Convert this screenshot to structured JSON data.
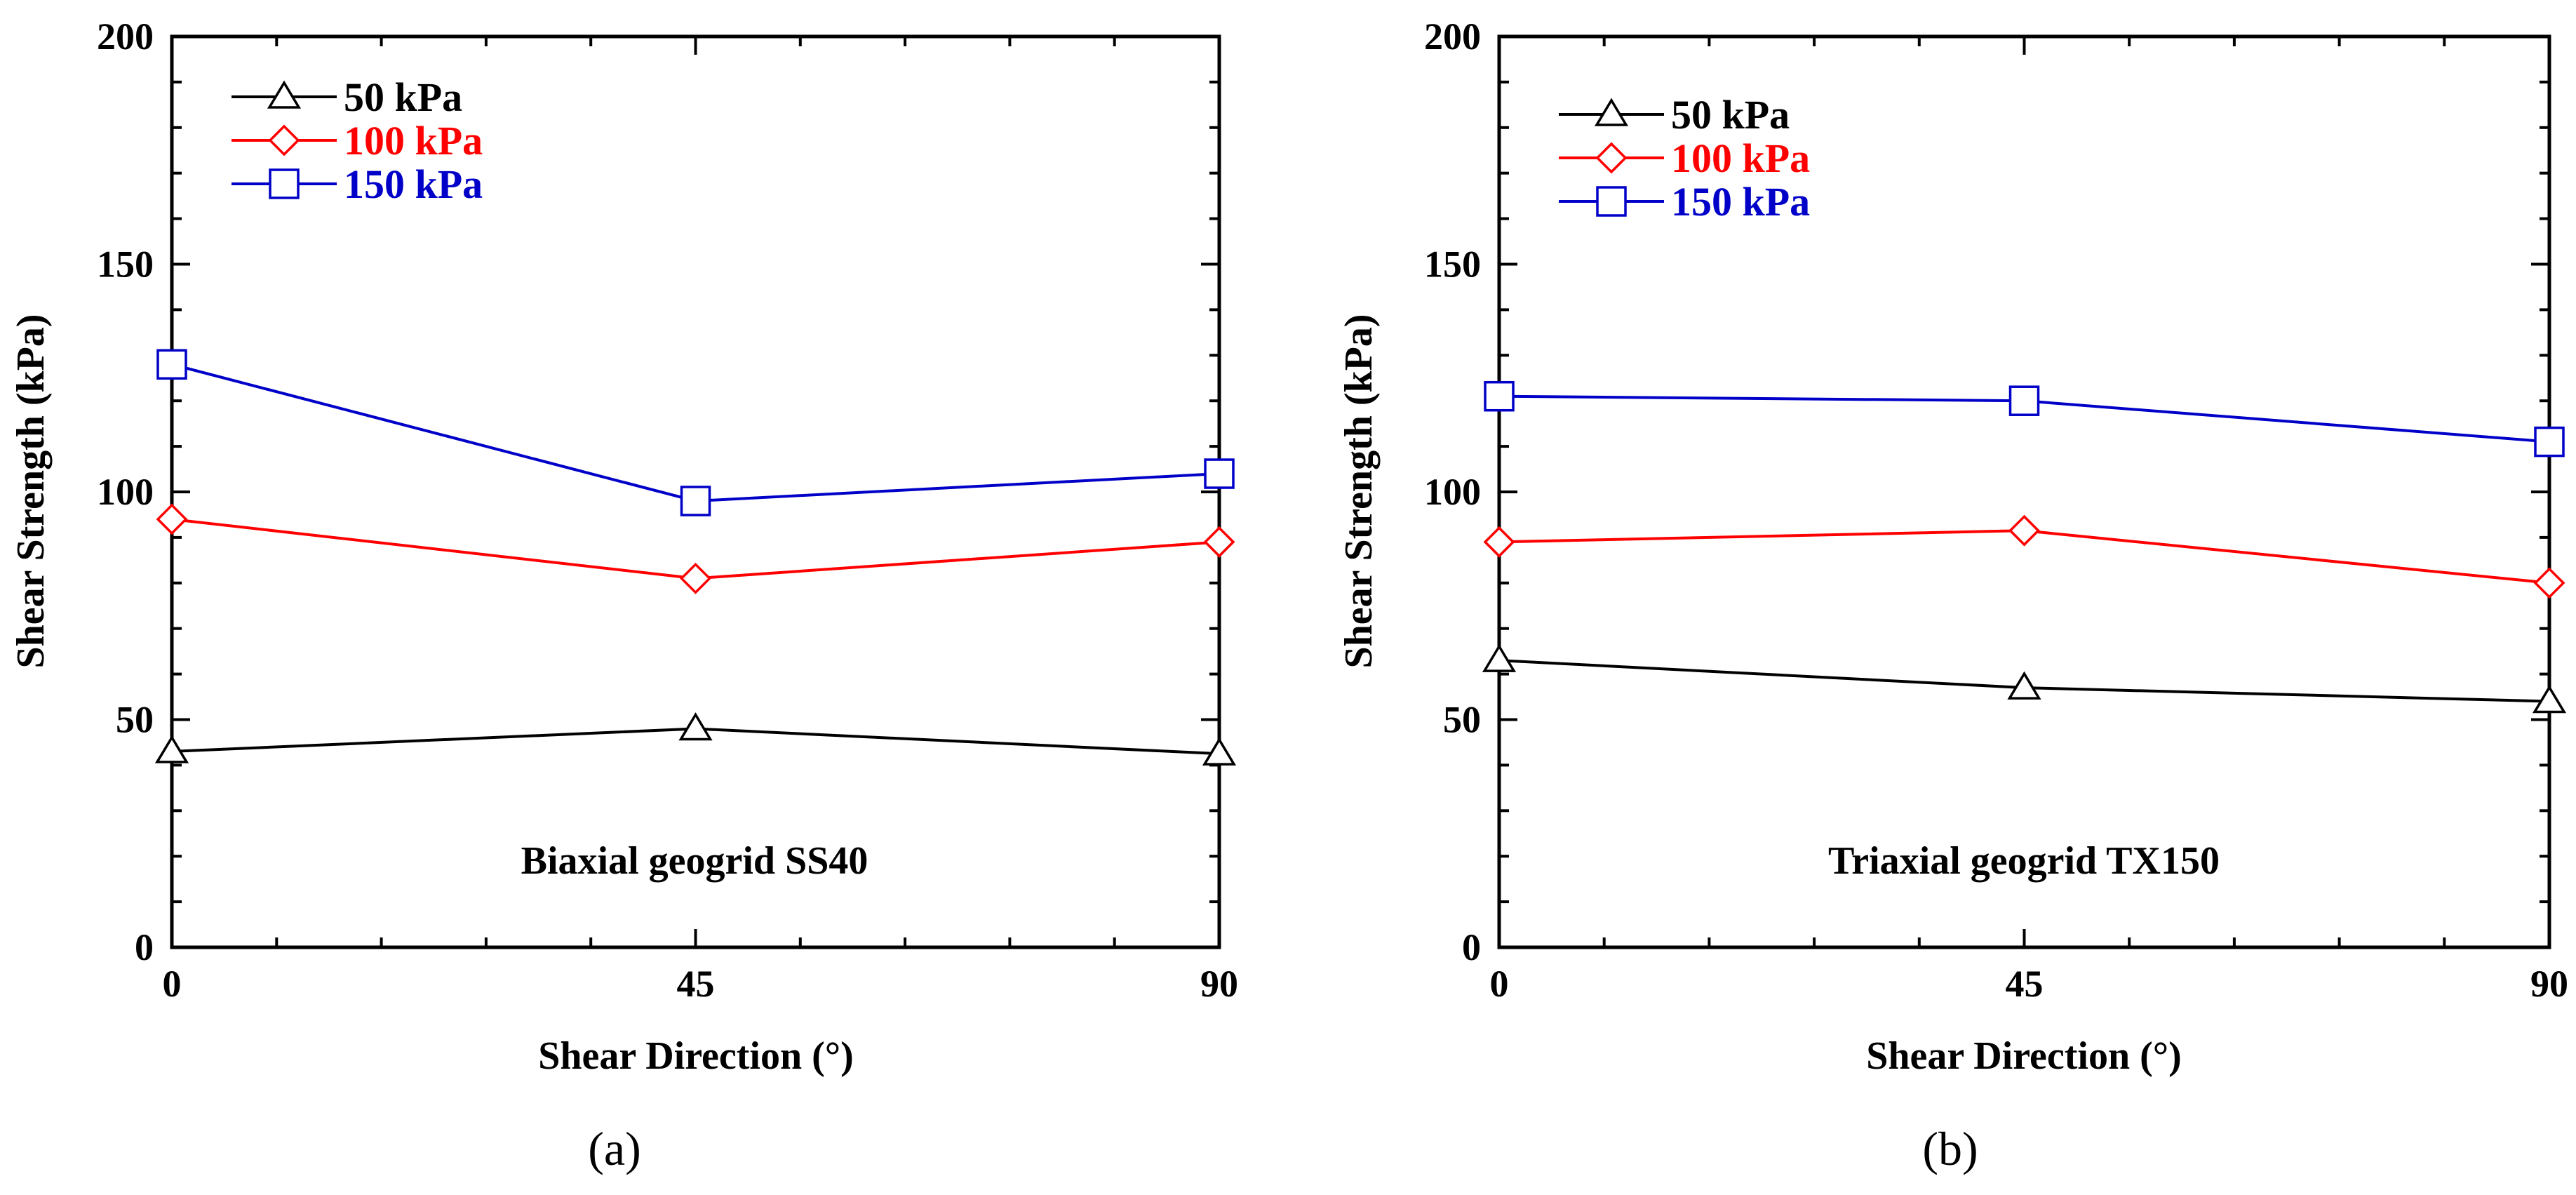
{
  "chart_data": [
    {
      "type": "line",
      "panel_label": "(a)",
      "annotation": "Biaxial geogrid SS40",
      "xlabel": "Shear Direction (°)",
      "ylabel": "Shear Strength (kPa)",
      "xlim": [
        0,
        90
      ],
      "ylim": [
        0,
        200
      ],
      "xticks": [
        0,
        45,
        90
      ],
      "yticks": [
        0,
        50,
        100,
        150,
        200
      ],
      "legend_position": "top-left",
      "x": [
        0,
        45,
        90
      ],
      "series": [
        {
          "name": "50 kPa",
          "color": "#000000",
          "marker": "triangle",
          "values": [
            43,
            48,
            42.5
          ]
        },
        {
          "name": "100 kPa",
          "color": "#ff0000",
          "marker": "diamond",
          "values": [
            94,
            81,
            89
          ]
        },
        {
          "name": "150 kPa",
          "color": "#0000c8",
          "marker": "square",
          "values": [
            128,
            98,
            104
          ]
        }
      ]
    },
    {
      "type": "line",
      "panel_label": "(b)",
      "annotation": "Triaxial geogrid TX150",
      "xlabel": "Shear Direction (°)",
      "ylabel": "Shear Strength (kPa)",
      "xlim": [
        0,
        90
      ],
      "ylim": [
        0,
        200
      ],
      "xticks": [
        0,
        45,
        90
      ],
      "yticks": [
        0,
        50,
        100,
        150,
        200
      ],
      "legend_position": "top-left",
      "x": [
        0,
        45,
        90
      ],
      "series": [
        {
          "name": "50 kPa",
          "color": "#000000",
          "marker": "triangle",
          "values": [
            63,
            57,
            54
          ]
        },
        {
          "name": "100 kPa",
          "color": "#ff0000",
          "marker": "diamond",
          "values": [
            89,
            91.5,
            80
          ]
        },
        {
          "name": "150 kPa",
          "color": "#0000c8",
          "marker": "square",
          "values": [
            121,
            120,
            111
          ]
        }
      ]
    }
  ]
}
